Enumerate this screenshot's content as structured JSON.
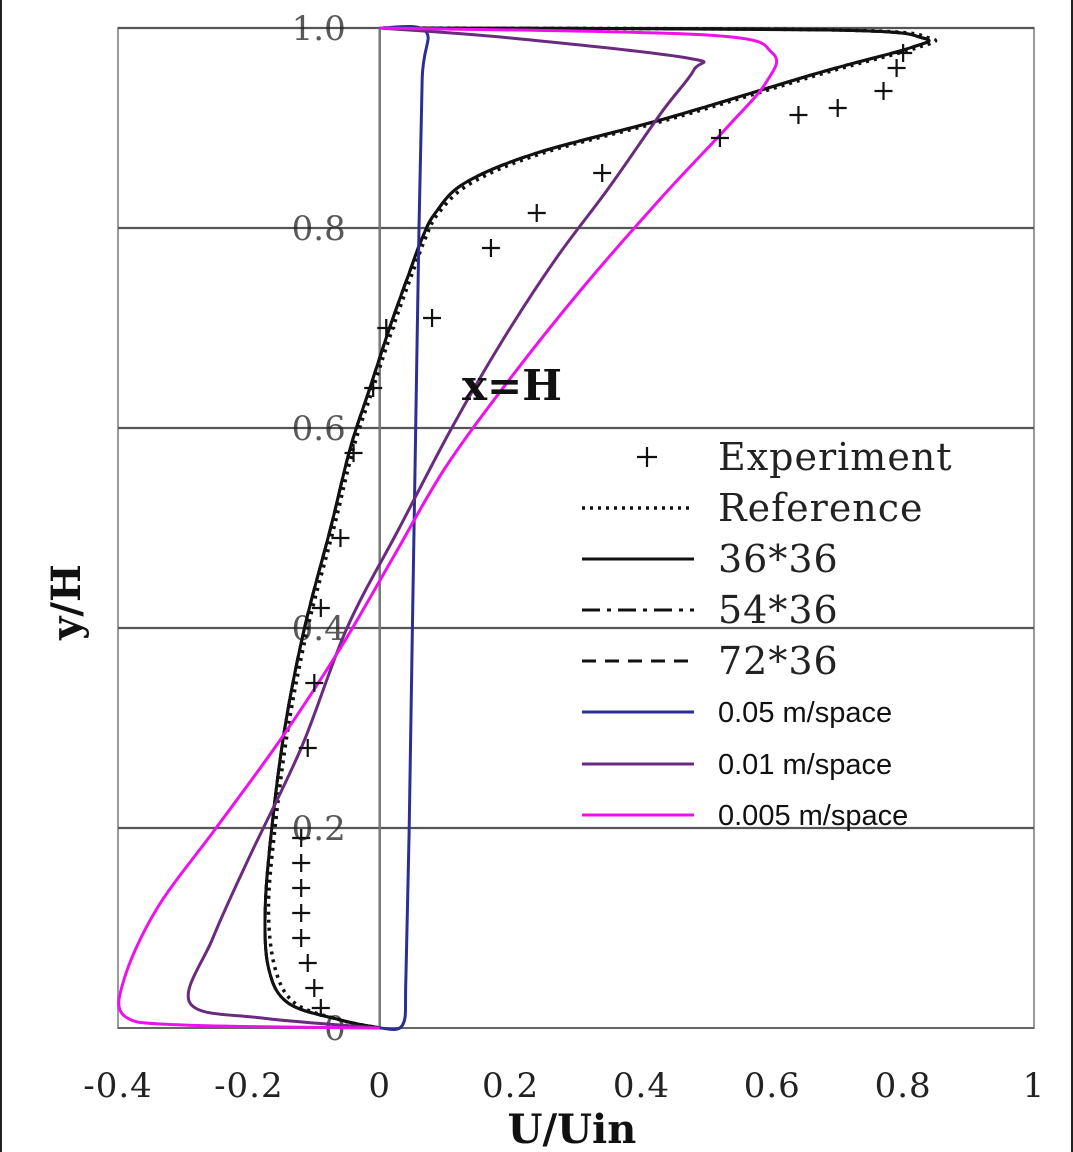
{
  "chart_data": {
    "type": "line",
    "title": "",
    "xlabel": "U/Uin",
    "ylabel": "y/H",
    "annotation": "x=H",
    "xlim": [
      -0.4,
      1
    ],
    "ylim": [
      0,
      1
    ],
    "x_ticks": [
      "-0.4",
      "-0.2",
      "0",
      "0.2",
      "0.4",
      "0.6",
      "0.8",
      "1"
    ],
    "y_ticks": [
      "0",
      "0.2",
      "0.4",
      "0.6",
      "0.8",
      "1.0"
    ],
    "grid": true,
    "legend_position": "right-center",
    "series": [
      {
        "name": "Experiment",
        "style": "plus",
        "color": "#111111",
        "x": [
          -0.09,
          -0.1,
          -0.11,
          -0.12,
          -0.12,
          -0.12,
          -0.12,
          -0.12,
          -0.11,
          -0.1,
          -0.09,
          -0.06,
          -0.04,
          -0.01,
          0.01,
          0.08,
          0.17,
          0.24,
          0.34,
          0.52,
          0.64,
          0.7,
          0.77,
          0.79,
          0.8
        ],
        "y": [
          0.02,
          0.04,
          0.065,
          0.09,
          0.115,
          0.14,
          0.165,
          0.19,
          0.28,
          0.345,
          0.42,
          0.49,
          0.575,
          0.64,
          0.7,
          0.71,
          0.78,
          0.815,
          0.855,
          0.89,
          0.913,
          0.92,
          0.937,
          0.96,
          0.975
        ]
      },
      {
        "name": "Reference",
        "style": "dotted",
        "color": "#111111",
        "x": [
          0.0,
          -0.06,
          -0.13,
          -0.16,
          -0.17,
          -0.16,
          -0.14,
          -0.11,
          -0.07,
          -0.04,
          -0.01,
          0.02,
          0.05,
          0.07,
          0.09,
          0.14,
          0.25,
          0.45,
          0.68,
          0.82,
          0.84,
          0.7,
          0.0
        ],
        "y": [
          0.0,
          0.008,
          0.025,
          0.06,
          0.12,
          0.2,
          0.3,
          0.4,
          0.5,
          0.58,
          0.64,
          0.7,
          0.755,
          0.79,
          0.815,
          0.845,
          0.875,
          0.91,
          0.955,
          0.98,
          0.99,
          0.998,
          1.0
        ]
      },
      {
        "name": "36*36",
        "style": "solid",
        "color": "#111111",
        "x": [
          0.0,
          -0.06,
          -0.14,
          -0.17,
          -0.175,
          -0.165,
          -0.145,
          -0.115,
          -0.075,
          -0.045,
          -0.015,
          0.015,
          0.045,
          0.065,
          0.085,
          0.13,
          0.24,
          0.44,
          0.67,
          0.81,
          0.83,
          0.69,
          0.0
        ],
        "y": [
          0.0,
          0.008,
          0.025,
          0.06,
          0.12,
          0.2,
          0.3,
          0.4,
          0.5,
          0.58,
          0.64,
          0.7,
          0.755,
          0.79,
          0.815,
          0.845,
          0.875,
          0.91,
          0.955,
          0.98,
          0.99,
          0.998,
          1.0
        ]
      },
      {
        "name": "54*36",
        "style": "dash-dot",
        "color": "#111111",
        "x": [
          0.0,
          -0.06,
          -0.14,
          -0.17,
          -0.175,
          -0.165,
          -0.145,
          -0.115,
          -0.075,
          -0.045,
          -0.015,
          0.015,
          0.045,
          0.065,
          0.085,
          0.13,
          0.24,
          0.44,
          0.67,
          0.81,
          0.83,
          0.69,
          0.0
        ],
        "y": [
          0.0,
          0.008,
          0.025,
          0.06,
          0.12,
          0.2,
          0.3,
          0.4,
          0.5,
          0.58,
          0.64,
          0.7,
          0.755,
          0.79,
          0.815,
          0.845,
          0.875,
          0.91,
          0.955,
          0.98,
          0.99,
          0.998,
          1.0
        ]
      },
      {
        "name": "72*36",
        "style": "dashed",
        "color": "#111111",
        "x": [
          0.0,
          -0.06,
          -0.14,
          -0.17,
          -0.175,
          -0.165,
          -0.145,
          -0.115,
          -0.075,
          -0.045,
          -0.015,
          0.015,
          0.045,
          0.065,
          0.085,
          0.13,
          0.24,
          0.44,
          0.67,
          0.81,
          0.83,
          0.69,
          0.0
        ],
        "y": [
          0.0,
          0.008,
          0.025,
          0.06,
          0.12,
          0.2,
          0.3,
          0.4,
          0.5,
          0.58,
          0.64,
          0.7,
          0.755,
          0.79,
          0.815,
          0.845,
          0.875,
          0.91,
          0.955,
          0.98,
          0.99,
          0.998,
          1.0
        ]
      },
      {
        "name": "0.05 m/space",
        "style": "solid",
        "color": "#2b2f93",
        "x": [
          0.0,
          0.035,
          0.04,
          0.045,
          0.05,
          0.055,
          0.06,
          0.065,
          0.07,
          0.0
        ],
        "y": [
          0.0,
          0.003,
          0.05,
          0.2,
          0.4,
          0.6,
          0.8,
          0.95,
          0.997,
          1.0
        ]
      },
      {
        "name": "0.01 m/space",
        "style": "solid",
        "color": "#6a2a7e",
        "x": [
          0.0,
          -0.18,
          -0.29,
          -0.255,
          -0.2,
          -0.12,
          -0.05,
          0.03,
          0.11,
          0.19,
          0.27,
          0.35,
          0.43,
          0.48,
          0.47,
          0.2,
          0.0
        ],
        "y": [
          0.0,
          0.01,
          0.025,
          0.09,
          0.17,
          0.28,
          0.4,
          0.5,
          0.6,
          0.69,
          0.77,
          0.84,
          0.915,
          0.958,
          0.97,
          0.99,
          1.0
        ]
      },
      {
        "name": "0.005 m/space",
        "style": "solid",
        "color": "#ee11ee",
        "x": [
          0.0,
          -0.3,
          -0.39,
          -0.39,
          -0.34,
          -0.25,
          -0.15,
          -0.06,
          0.02,
          0.1,
          0.2,
          0.31,
          0.43,
          0.53,
          0.59,
          0.6,
          0.5,
          0.0
        ],
        "y": [
          0.0,
          0.003,
          0.012,
          0.05,
          0.12,
          0.2,
          0.29,
          0.38,
          0.47,
          0.56,
          0.65,
          0.74,
          0.83,
          0.9,
          0.945,
          0.975,
          0.993,
          1.0
        ]
      }
    ]
  }
}
